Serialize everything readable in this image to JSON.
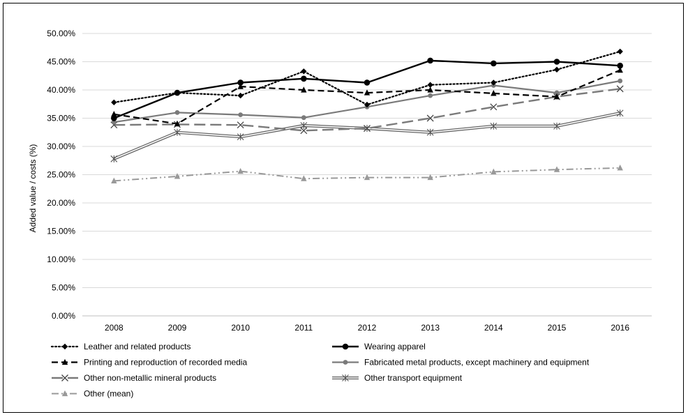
{
  "chart_data": {
    "type": "line",
    "title": "",
    "xlabel": "",
    "ylabel": "Added value / costs (%)",
    "ylim": [
      0,
      50
    ],
    "ytick_step": 5,
    "ytick_format": "percent_2dp",
    "grid": "horizontal",
    "legend_position": "bottom",
    "categories": [
      "2008",
      "2009",
      "2010",
      "2011",
      "2012",
      "2013",
      "2014",
      "2015",
      "2016"
    ],
    "series": [
      {
        "name": "Leather and related products",
        "values": [
          37.8,
          39.5,
          39.0,
          43.3,
          37.4,
          40.9,
          41.3,
          43.6,
          46.8
        ],
        "color": "#000000",
        "dash": "dotted",
        "marker": "diamond",
        "width": 2.2
      },
      {
        "name": "Wearing apparel",
        "values": [
          35.0,
          39.5,
          41.3,
          42.0,
          41.3,
          45.2,
          44.7,
          45.0,
          44.3
        ],
        "color": "#000000",
        "dash": "solid",
        "marker": "circle",
        "width": 2.4
      },
      {
        "name": "Printing and reproduction of recorded media",
        "values": [
          35.7,
          34.0,
          40.6,
          40.0,
          39.5,
          40.0,
          39.4,
          38.8,
          43.5
        ],
        "color": "#000000",
        "dash": "dashed",
        "marker": "triangle",
        "width": 2.2
      },
      {
        "name": "Fabricated metal products, except machinery and equipment",
        "values": [
          34.3,
          36.0,
          35.6,
          35.1,
          37.0,
          39.0,
          40.8,
          39.5,
          41.6
        ],
        "color": "#7a7a7a",
        "dash": "solid",
        "marker": "circle-small",
        "width": 2.2
      },
      {
        "name": "Other non-metallic mineral products",
        "values": [
          33.8,
          33.9,
          33.8,
          32.8,
          33.2,
          35.0,
          37.0,
          38.8,
          40.2
        ],
        "color": "#7a7a7a",
        "dash": "longdash",
        "marker": "x",
        "width": 2.4
      },
      {
        "name": "Other transport equipment",
        "values": [
          27.8,
          32.5,
          31.7,
          33.7,
          33.2,
          32.5,
          33.6,
          33.6,
          35.9
        ],
        "color": "#666666",
        "dash": "double",
        "marker": "asterisk",
        "width": 1.2
      },
      {
        "name": "Other (mean)",
        "values": [
          23.9,
          24.7,
          25.6,
          24.3,
          24.5,
          24.5,
          25.5,
          25.9,
          26.2
        ],
        "color": "#999999",
        "dash": "dashdotdot",
        "marker": "triangle",
        "width": 2.0
      }
    ]
  }
}
